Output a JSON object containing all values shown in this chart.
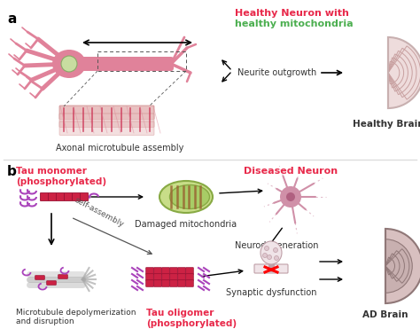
{
  "background_color": "#ffffff",
  "panel_a_label": "a",
  "panel_b_label": "b",
  "title_healthy_neuron_line1": "Healthy Neuron with",
  "title_healthy_neuron_line2": "healthy mitochondria",
  "title_diseased_neuron": "Diseased Neuron",
  "label_axonal": "Axonal microtubule assembly",
  "label_neurite": "Neurite outgrowth",
  "label_healthy_brain": "Healthy Brain",
  "label_ad_brain": "AD Brain",
  "label_tau_monomer_line1": "Tau monomer",
  "label_tau_monomer_line2": "(phosphorylated)",
  "label_tau_oligomer_line1": "Tau oligomer",
  "label_tau_oligomer_line2": "(phosphorylated)",
  "label_damaged_mito": "Damaged mitochondria",
  "label_neurodegeneration": "Neurodegeneration",
  "label_synaptic": "Synaptic dysfunction",
  "label_micro_depoly_line1": "Microtubule depolymerization",
  "label_micro_depoly_line2": "and disruption",
  "label_self_assembly": "self-assembly",
  "color_red": "#e8294a",
  "color_green": "#4caf50",
  "color_pink_neuron": "#e0829a",
  "color_pink_light": "#f0b8c8",
  "color_purple": "#aa44bb",
  "color_dark_red": "#cc2244",
  "color_gray": "#aaaaaa",
  "color_brain_outer": "#e8d0d0",
  "color_brain_edge": "#c8a8a8",
  "color_brain_gyri": "#f4e0e0",
  "color_brain_ad_outer": "#c8b0b0",
  "color_brain_ad_gyri": "#b09898",
  "color_mito_outer": "#c8dd88",
  "color_mito_inner": "#88bb44",
  "color_mito_stripe": "#cc6622",
  "color_separator": "#dddddd",
  "color_micro_main": "#c8b8b8",
  "color_micro_stripe": "#cc4466",
  "color_tau_red": "#cc2244",
  "color_tau_dark": "#991133"
}
